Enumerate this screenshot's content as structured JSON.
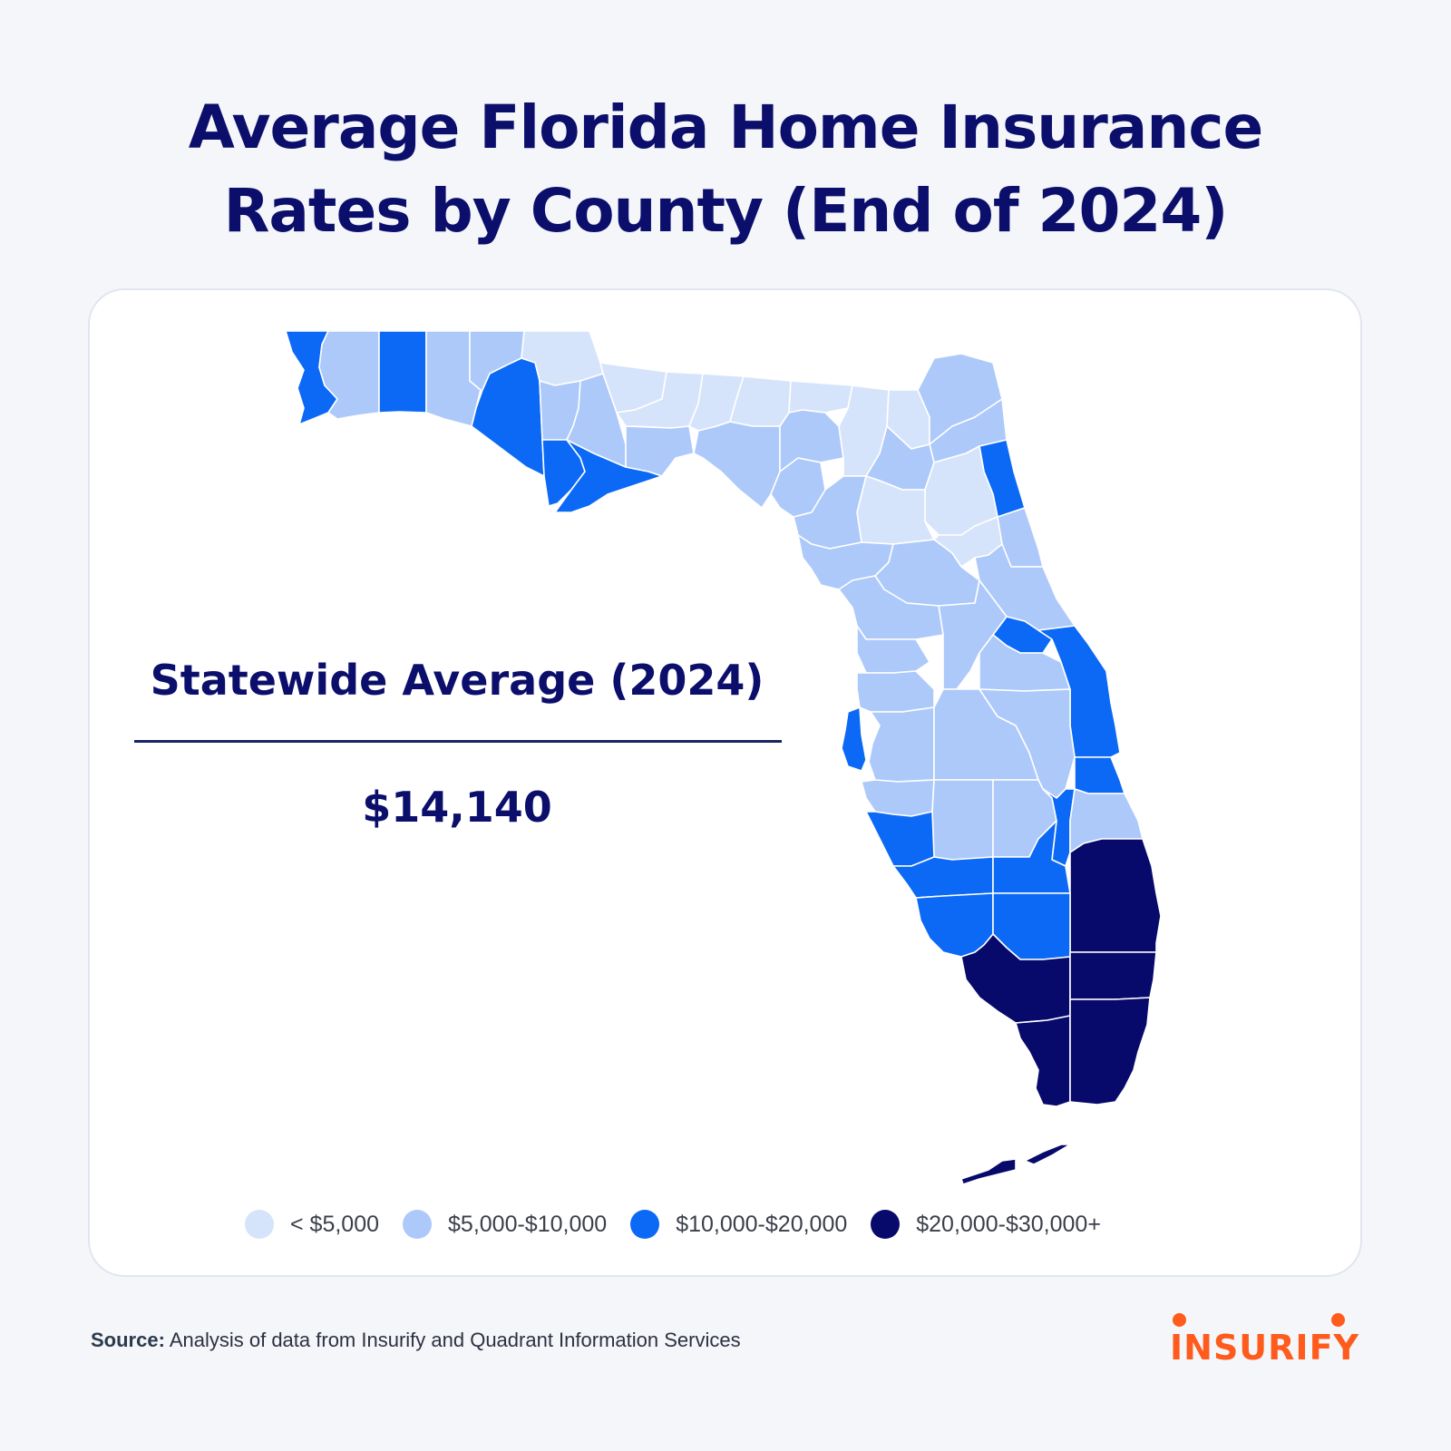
{
  "title": {
    "line1": "Average Florida Home Insurance",
    "line2": "Rates by County (End of 2024)"
  },
  "statewide": {
    "label": "Statewide Average (2024)",
    "value": "$14,140"
  },
  "legend": [
    {
      "label": "< $5,000",
      "color": "#d6e4fb"
    },
    {
      "label": "$5,000-$10,000",
      "color": "#adc9fa"
    },
    {
      "label": "$10,000-$20,000",
      "color": "#0b69f5"
    },
    {
      "label": "$20,000-$30,000+",
      "color": "#070a6b"
    }
  ],
  "source": {
    "prefix": "Source:",
    "text": "Analysis of data from Insurify and Quadrant Information Services"
  },
  "brand": {
    "name": "INSURIFY",
    "color": "#fe5b1c"
  },
  "map": {
    "boundary_color": "#ffffff"
  }
}
